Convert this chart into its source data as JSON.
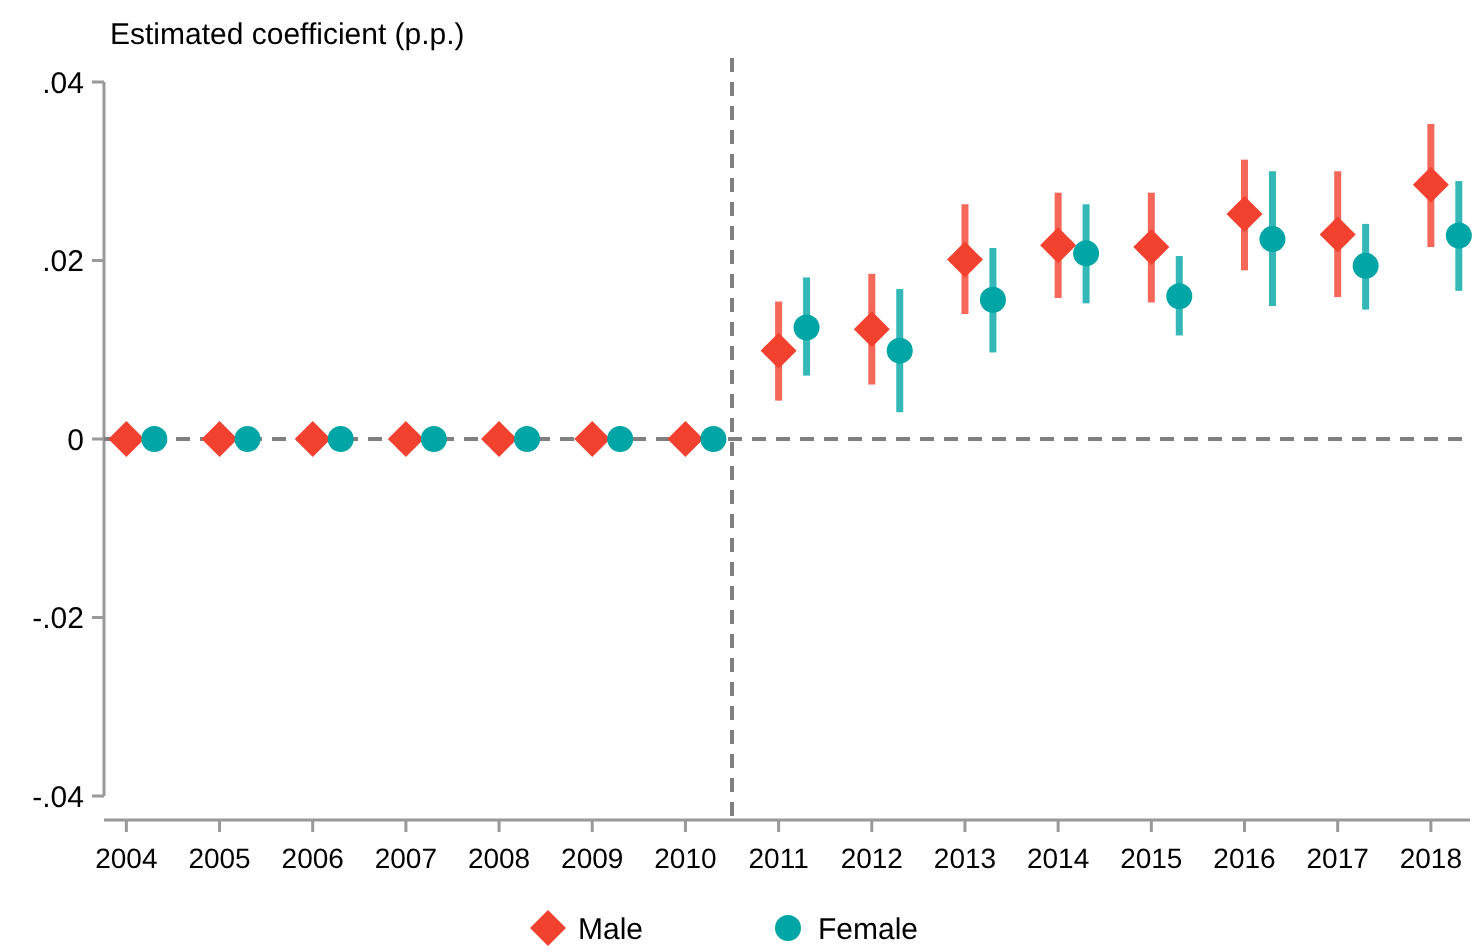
{
  "chart_data": {
    "type": "scatter",
    "ylabel": "Estimated coefficient (p.p.)",
    "xlim": [
      2003.76,
      2018.42
    ],
    "xticks": [
      2004,
      2005,
      2006,
      2007,
      2008,
      2009,
      2010,
      2011,
      2012,
      2013,
      2014,
      2015,
      2016,
      2017,
      2018
    ],
    "ylim": [
      -0.04,
      0.04
    ],
    "yticks": [
      {
        "value": -0.04,
        "label": "-.04"
      },
      {
        "value": -0.02,
        "label": "-.02"
      },
      0,
      {
        "value": 0.02,
        "label": ".02"
      },
      {
        "value": 0.04,
        "label": ".04"
      }
    ],
    "grid": false,
    "legend": "bottom",
    "ref_lines": [
      {
        "axis": "y",
        "value": 0,
        "color": "#808080",
        "line_style": "dashed"
      },
      {
        "axis": "x",
        "value": 2010.5,
        "color": "#808080",
        "line_style": "dashed"
      }
    ],
    "series": [
      {
        "name": "Male",
        "color": "#f2412f",
        "marker": "diamond",
        "x": [
          2004,
          2005,
          2006,
          2007,
          2008,
          2009,
          2010,
          2011,
          2012,
          2013,
          2014,
          2015,
          2016,
          2017,
          2018
        ],
        "values": [
          0,
          0,
          0,
          0,
          0,
          0,
          0,
          0.0099,
          0.0123,
          0.0201,
          0.0217,
          0.0215,
          0.0252,
          0.0229,
          0.0285
        ],
        "errors": [
          null,
          null,
          null,
          null,
          null,
          null,
          null,
          [
            0.0043,
            0.0154
          ],
          [
            0.0061,
            0.0185
          ],
          [
            0.014,
            0.0263
          ],
          [
            0.0158,
            0.0276
          ],
          [
            0.0153,
            0.0276
          ],
          [
            0.0189,
            0.0313
          ],
          [
            0.0159,
            0.03
          ],
          [
            0.0215,
            0.0353
          ]
        ]
      },
      {
        "name": "Female",
        "color": "#00a5a5",
        "marker": "circle",
        "x": [
          2004.3,
          2005.3,
          2006.3,
          2007.3,
          2008.3,
          2009.3,
          2010.3,
          2011.3,
          2012.3,
          2013.3,
          2014.3,
          2015.3,
          2016.3,
          2017.3,
          2018.3
        ],
        "values": [
          0,
          0,
          0,
          0,
          0,
          0,
          0,
          0.0125,
          0.0099,
          0.0156,
          0.0208,
          0.016,
          0.0224,
          0.0194,
          0.0228
        ],
        "errors": [
          null,
          null,
          null,
          null,
          null,
          null,
          null,
          [
            0.0071,
            0.0181
          ],
          [
            0.003,
            0.0168
          ],
          [
            0.0097,
            0.0214
          ],
          [
            0.0152,
            0.0263
          ],
          [
            0.0116,
            0.0205
          ],
          [
            0.0149,
            0.03
          ],
          [
            0.0145,
            0.0241
          ],
          [
            0.0166,
            0.0289
          ]
        ]
      }
    ]
  }
}
